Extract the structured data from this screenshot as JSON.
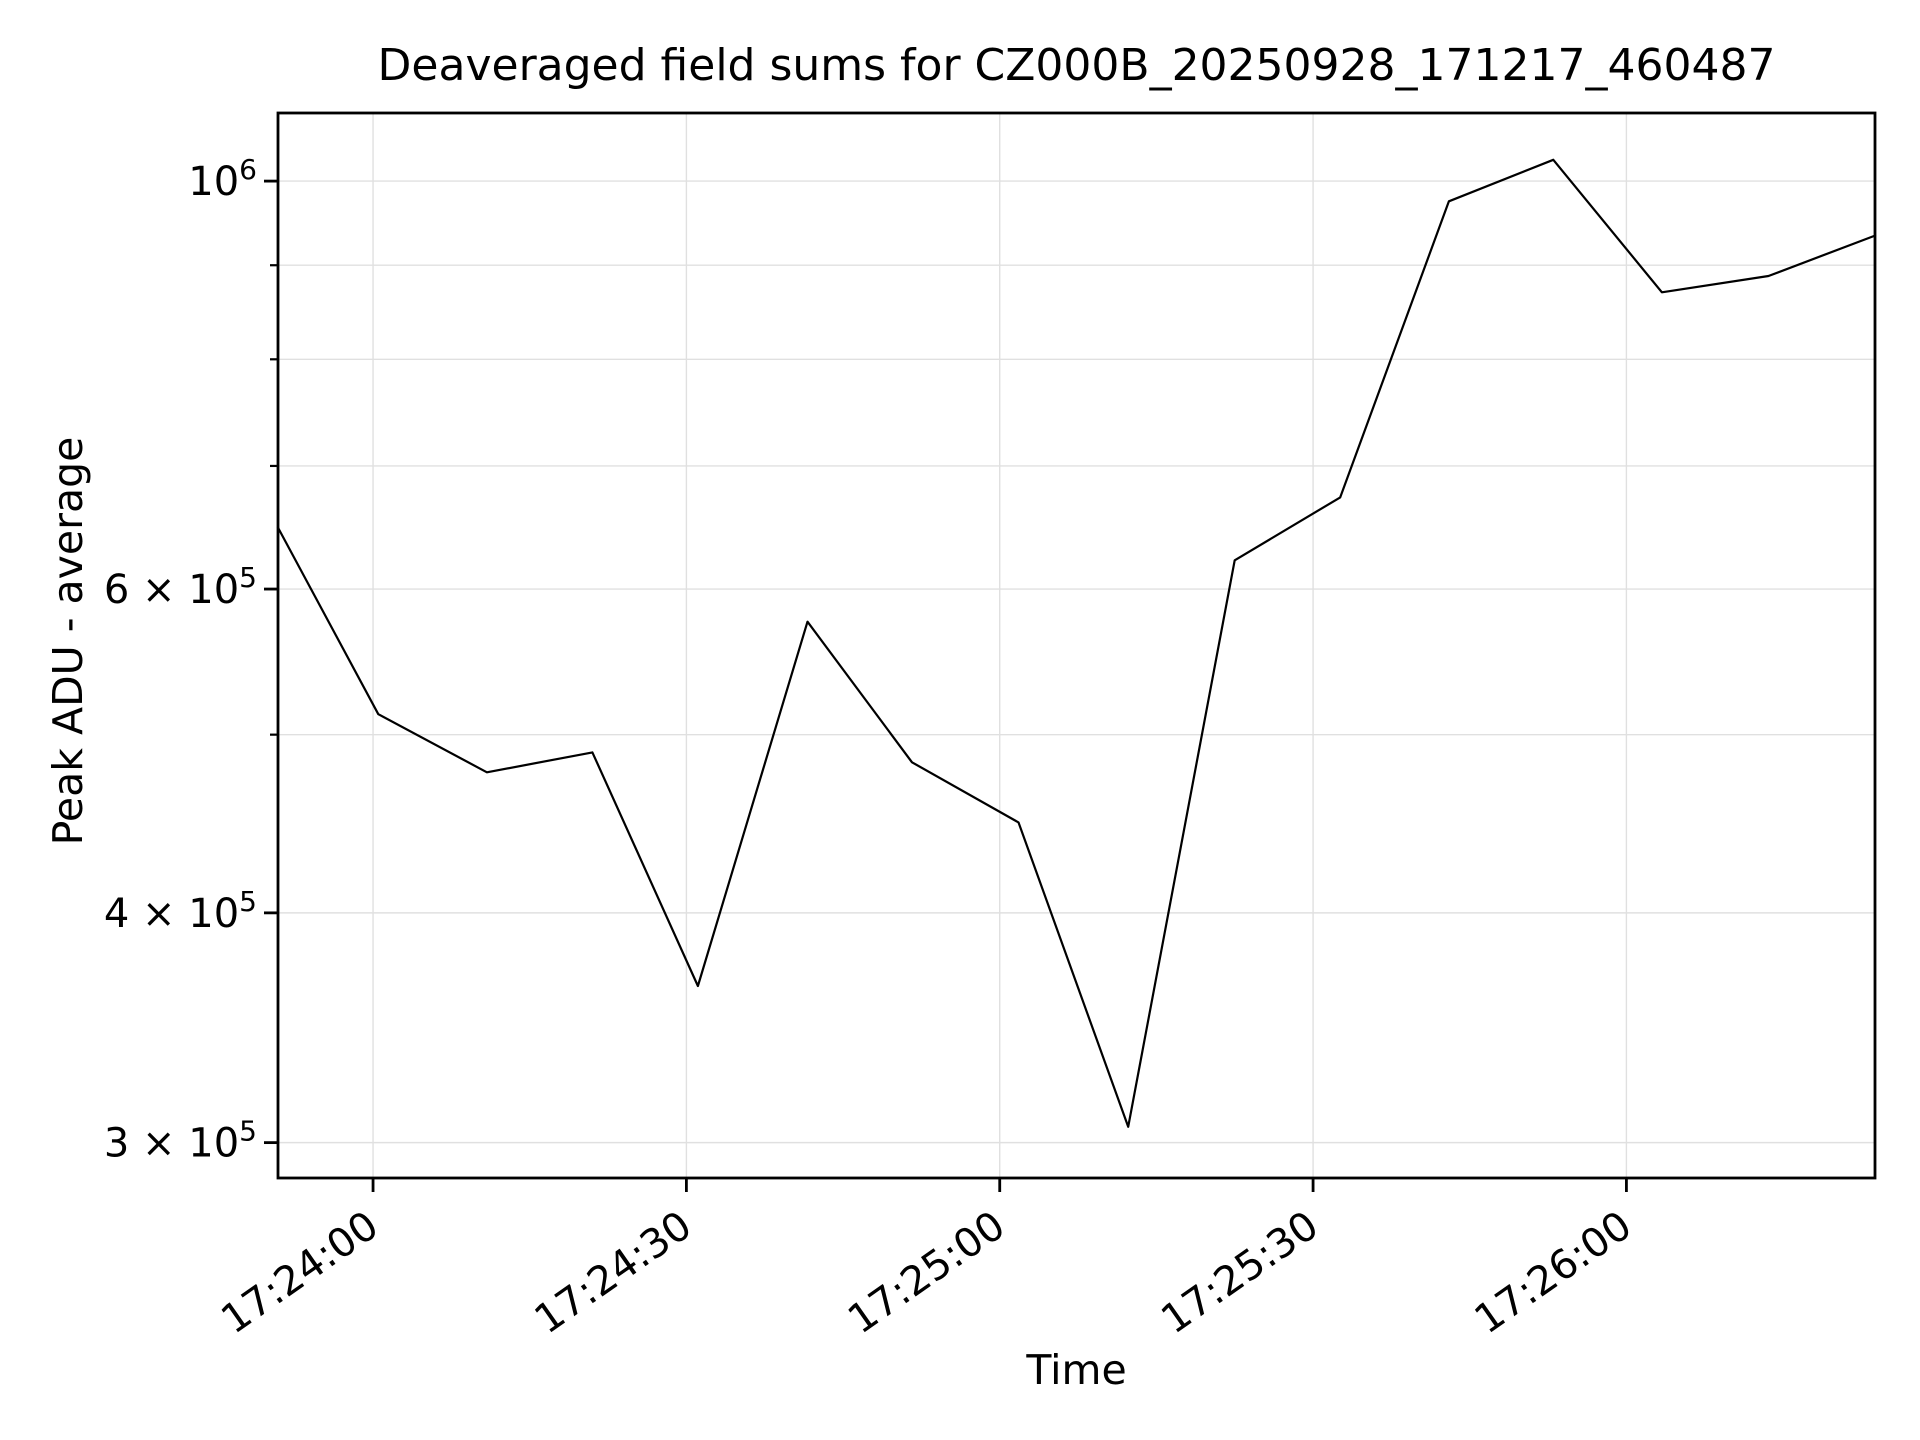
{
  "figure": {
    "background": "#ffffff"
  },
  "chart_data": {
    "type": "line",
    "title": "Deaveraged field sums for CZ000B_20250928_171217_460487",
    "xlabel": "Time",
    "ylabel": "Peak ADU - average",
    "yscale": "log",
    "grid": true,
    "legend": "none",
    "line_color": "#000000",
    "grid_color": "#e0e0e0",
    "axis_color": "#000000",
    "times": [
      "17:23:51",
      "17:24:00",
      "17:24:11",
      "17:24:21",
      "17:24:31",
      "17:24:42",
      "17:24:52",
      "17:25:02",
      "17:25:12",
      "17:25:22",
      "17:25:33",
      "17:25:43",
      "17:25:53",
      "17:26:03",
      "17:26:14",
      "17:26:24"
    ],
    "x_seconds": [
      -9.1,
      0.5,
      10.9,
      21.0,
      31.1,
      41.6,
      51.6,
      61.8,
      72.3,
      82.5,
      92.6,
      103.0,
      113.0,
      123.4,
      133.6,
      143.8
    ],
    "values": [
      648000,
      513000,
      477000,
      489000,
      365000,
      576000,
      483000,
      448000,
      306000,
      622000,
      673000,
      975000,
      1027000,
      870000,
      888000,
      934000
    ],
    "xlim_seconds": [
      -9.1,
      143.8
    ],
    "ylim": [
      287000,
      1089000
    ],
    "x_ticks": [
      {
        "seconds": 0,
        "label": "17:24:00"
      },
      {
        "seconds": 30,
        "label": "17:24:30"
      },
      {
        "seconds": 60,
        "label": "17:25:00"
      },
      {
        "seconds": 90,
        "label": "17:25:30"
      },
      {
        "seconds": 120,
        "label": "17:26:00"
      }
    ],
    "y_major_ticks": [
      {
        "value": 1000000,
        "mantissa": "10",
        "exp": "6"
      },
      {
        "value": 600000,
        "mantissa": "6 × 10",
        "exp": "5"
      },
      {
        "value": 400000,
        "mantissa": "4 × 10",
        "exp": "5"
      },
      {
        "value": 300000,
        "mantissa": "3 × 10",
        "exp": "5"
      }
    ],
    "y_minor_ticks": [
      900000,
      800000,
      700000,
      500000
    ]
  }
}
